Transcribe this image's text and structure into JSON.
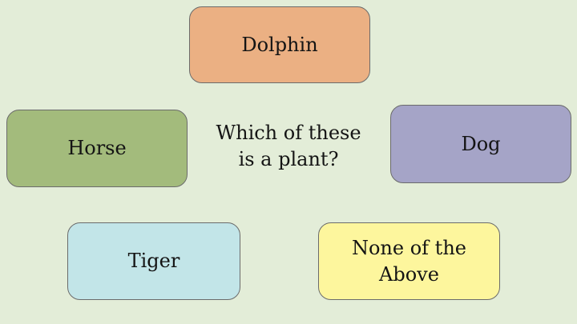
{
  "question": {
    "line1": "Which of these",
    "line2": "is a plant?"
  },
  "options": {
    "dolphin": "Dolphin",
    "horse": "Horse",
    "dog": "Dog",
    "tiger": "Tiger",
    "none_line1": "None of the",
    "none_line2": "Above"
  },
  "colors": {
    "background": "#e3edd8",
    "dolphin": "#ebb083",
    "horse": "#a3bb7c",
    "dog": "#a5a4c7",
    "tiger": "#c2e5e8",
    "none": "#fdf69d"
  }
}
